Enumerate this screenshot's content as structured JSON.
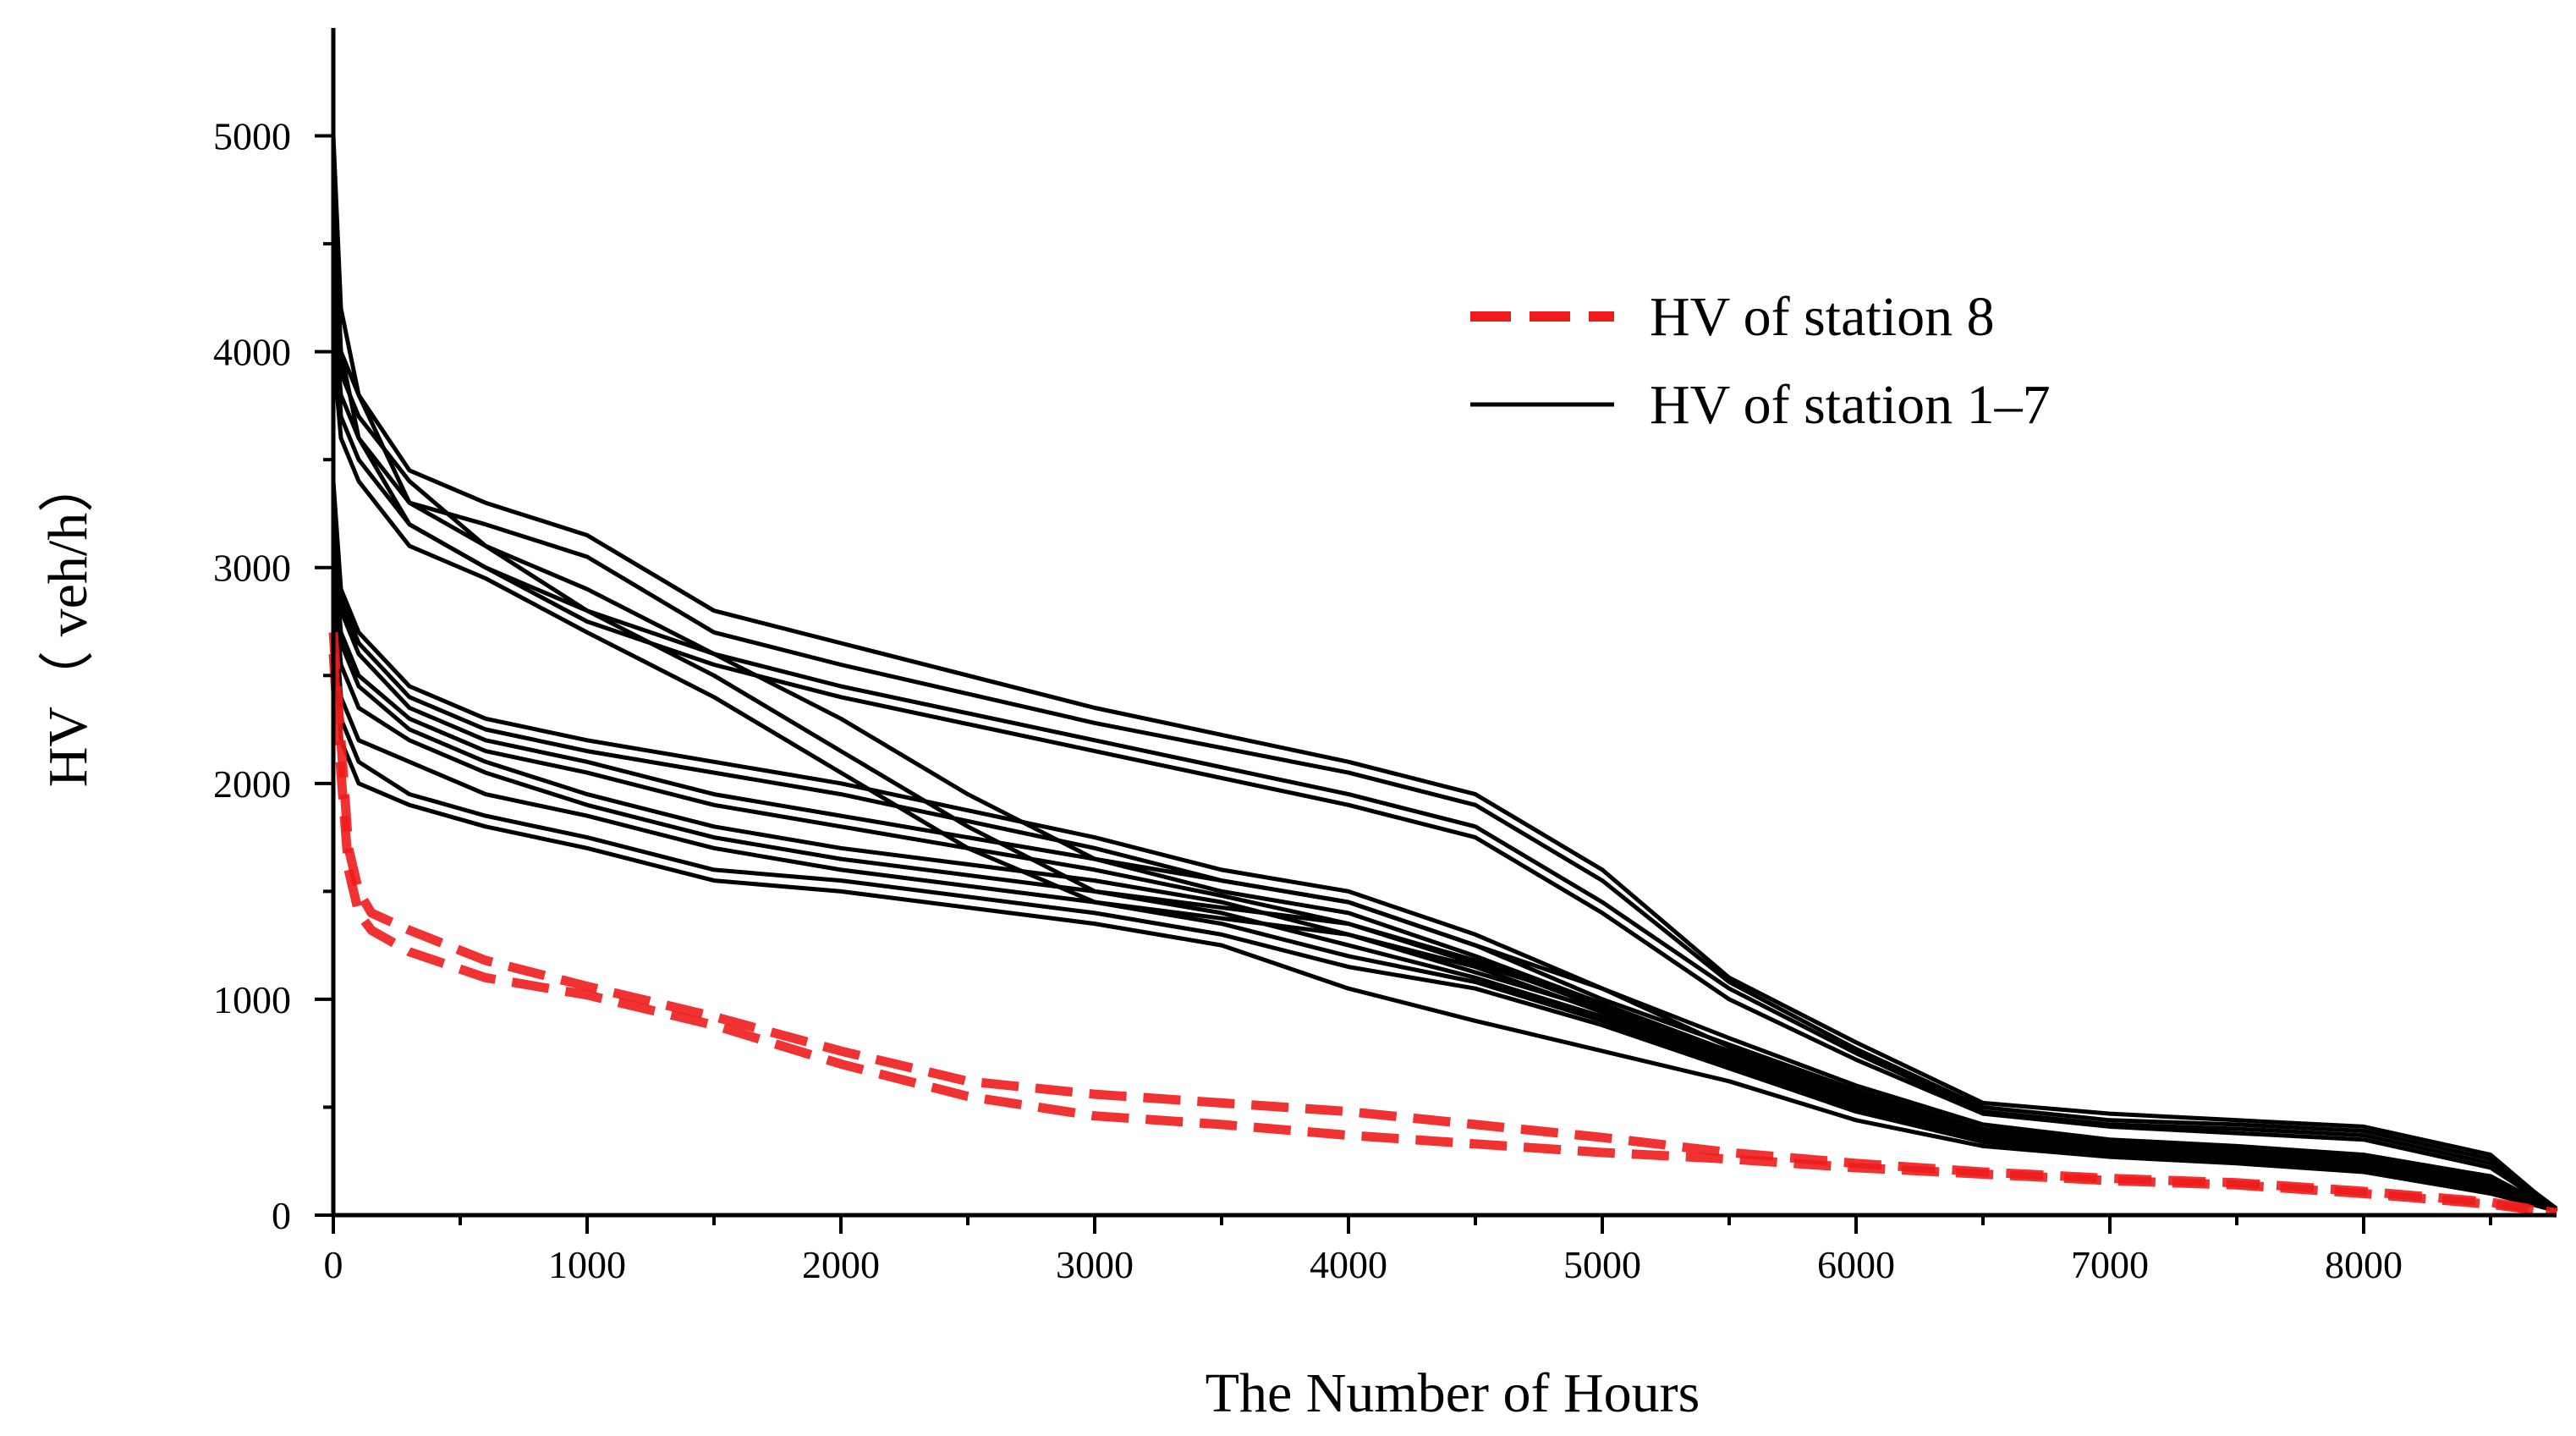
{
  "chart_data": {
    "type": "line",
    "title": "",
    "xlabel": "The Number of Hours",
    "ylabel": "HV（  veh/h）",
    "xlim": [
      0,
      8760
    ],
    "ylim": [
      0,
      5500
    ],
    "x_ticks": [
      0,
      1000,
      2000,
      3000,
      4000,
      5000,
      6000,
      7000,
      8000
    ],
    "x_tick_labels": [
      "0",
      "1000",
      "2000",
      "3000",
      "4000",
      "5000",
      "6000",
      "7000",
      "8000"
    ],
    "y_ticks": [
      0,
      1000,
      2000,
      3000,
      4000,
      5000
    ],
    "y_tick_labels": [
      "0",
      "1000",
      "2000",
      "3000",
      "4000",
      "5000"
    ],
    "legend": {
      "placement": "top-right",
      "entries": [
        {
          "label": "HV of station 8",
          "color": "#ee1c1c",
          "style": "dashed"
        },
        {
          "label": "HV of station 1–7",
          "color": "#000000",
          "style": "solid"
        }
      ]
    },
    "series": [
      {
        "name": "HV of station 1–7",
        "color": "#000000",
        "style": "solid",
        "x": [
          0,
          30,
          100,
          300,
          600,
          1000,
          1500,
          2000,
          3000,
          4000,
          4500,
          5000,
          5500,
          6000,
          6500,
          7000,
          7500,
          8000,
          8500,
          8760
        ],
        "y": [
          5000,
          4200,
          3800,
          3450,
          3300,
          3150,
          2800,
          2650,
          2350,
          2100,
          1950,
          1600,
          1100,
          800,
          520,
          470,
          440,
          410,
          280,
          20
        ]
      },
      {
        "name": "HV of station 1–7",
        "color": "#000000",
        "style": "solid",
        "x": [
          0,
          30,
          100,
          300,
          600,
          1000,
          1500,
          2000,
          3000,
          4000,
          4500,
          5000,
          5500,
          6000,
          6500,
          7000,
          7500,
          8000,
          8500,
          8760
        ],
        "y": [
          4800,
          4000,
          3600,
          3300,
          3200,
          3050,
          2700,
          2550,
          2280,
          2050,
          1900,
          1550,
          1080,
          770,
          500,
          440,
          420,
          390,
          260,
          30
        ]
      },
      {
        "name": "HV of station 1–7",
        "color": "#000000",
        "style": "solid",
        "x": [
          0,
          30,
          100,
          300,
          600,
          1000,
          1500,
          2000,
          3000,
          4000,
          4500,
          5000,
          5500,
          6000,
          6500,
          7000,
          7500,
          8000,
          8500,
          8760
        ],
        "y": [
          4500,
          3900,
          3700,
          3400,
          3100,
          2800,
          2600,
          2450,
          2200,
          1950,
          1800,
          1450,
          1050,
          750,
          480,
          420,
          400,
          370,
          240,
          20
        ]
      },
      {
        "name": "HV of station 1–7",
        "color": "#000000",
        "style": "solid",
        "x": [
          0,
          30,
          100,
          300,
          600,
          1000,
          1500,
          2000,
          3000,
          4000,
          4500,
          5000,
          5500,
          6000,
          6500,
          7000,
          7500,
          8000,
          8500,
          8760
        ],
        "y": [
          4300,
          3700,
          3500,
          3200,
          3000,
          2750,
          2550,
          2400,
          2150,
          1900,
          1750,
          1400,
          1000,
          720,
          470,
          410,
          380,
          350,
          220,
          20
        ]
      },
      {
        "name": "HV of station 1–7",
        "color": "#000000",
        "style": "solid",
        "x": [
          0,
          30,
          100,
          300,
          600,
          1000,
          1500,
          2000,
          2500,
          3000,
          4000,
          5000,
          5500,
          6000,
          6500,
          7000,
          7500,
          8000,
          8500,
          8760
        ],
        "y": [
          4600,
          4000,
          3800,
          3300,
          3100,
          2900,
          2600,
          2300,
          1950,
          1650,
          1450,
          1050,
          780,
          560,
          380,
          330,
          300,
          270,
          180,
          15
        ]
      },
      {
        "name": "HV of station 1–7",
        "color": "#000000",
        "style": "solid",
        "x": [
          0,
          30,
          100,
          300,
          600,
          1000,
          1500,
          2000,
          2500,
          3000,
          4000,
          5000,
          5500,
          6000,
          6500,
          7000,
          7500,
          8000,
          8500,
          8760
        ],
        "y": [
          4200,
          3800,
          3600,
          3200,
          3000,
          2800,
          2500,
          2150,
          1800,
          1500,
          1350,
          980,
          740,
          540,
          360,
          310,
          280,
          250,
          160,
          15
        ]
      },
      {
        "name": "HV of station 1–7",
        "color": "#000000",
        "style": "solid",
        "x": [
          0,
          30,
          100,
          300,
          600,
          1000,
          1500,
          2000,
          2500,
          3000,
          4000,
          5000,
          5500,
          6000,
          6500,
          7000,
          7500,
          8000,
          8500,
          8760
        ],
        "y": [
          4000,
          3600,
          3400,
          3100,
          2950,
          2700,
          2400,
          2050,
          1700,
          1450,
          1300,
          950,
          720,
          520,
          340,
          300,
          270,
          240,
          150,
          15
        ]
      },
      {
        "name": "HV of station 1–7",
        "color": "#000000",
        "style": "solid",
        "x": [
          0,
          30,
          100,
          300,
          600,
          1000,
          1500,
          2000,
          3000,
          3500,
          4000,
          4500,
          5000,
          5500,
          6000,
          6500,
          7000,
          7500,
          8000,
          8500,
          8760
        ],
        "y": [
          3400,
          2900,
          2700,
          2450,
          2300,
          2200,
          2100,
          2000,
          1750,
          1600,
          1500,
          1300,
          1050,
          820,
          600,
          420,
          350,
          320,
          280,
          180,
          20
        ]
      },
      {
        "name": "HV of station 1–7",
        "color": "#000000",
        "style": "solid",
        "x": [
          0,
          30,
          100,
          300,
          600,
          1000,
          1500,
          2000,
          3000,
          3500,
          4000,
          4500,
          5000,
          5500,
          6000,
          6500,
          7000,
          7500,
          8000,
          8500,
          8760
        ],
        "y": [
          3300,
          2850,
          2650,
          2400,
          2250,
          2150,
          2050,
          1950,
          1700,
          1550,
          1450,
          1250,
          1000,
          790,
          580,
          400,
          340,
          310,
          270,
          170,
          20
        ]
      },
      {
        "name": "HV of station 1–7",
        "color": "#000000",
        "style": "solid",
        "x": [
          0,
          30,
          100,
          300,
          600,
          1000,
          1500,
          2000,
          3000,
          3500,
          4000,
          4500,
          5000,
          5500,
          6000,
          6500,
          7000,
          7500,
          8000,
          8500,
          8760
        ],
        "y": [
          3200,
          2800,
          2600,
          2350,
          2200,
          2100,
          1950,
          1850,
          1650,
          1500,
          1400,
          1200,
          980,
          760,
          560,
          390,
          330,
          300,
          260,
          160,
          20
        ]
      },
      {
        "name": "HV of station 1–7",
        "color": "#000000",
        "style": "solid",
        "x": [
          0,
          30,
          100,
          300,
          600,
          1000,
          1500,
          2000,
          3000,
          3500,
          4000,
          4500,
          5000,
          5500,
          6000,
          6500,
          7000,
          7500,
          8000,
          8500,
          8760
        ],
        "y": [
          3100,
          2700,
          2500,
          2300,
          2150,
          2050,
          1900,
          1800,
          1600,
          1480,
          1350,
          1180,
          960,
          740,
          540,
          380,
          320,
          290,
          250,
          150,
          20
        ]
      },
      {
        "name": "HV of station 1–7",
        "color": "#000000",
        "style": "solid",
        "x": [
          0,
          30,
          100,
          300,
          600,
          1000,
          1500,
          2000,
          3000,
          3500,
          4000,
          4500,
          5000,
          5500,
          6000,
          6500,
          7000,
          7500,
          8000,
          8500,
          8760
        ],
        "y": [
          3000,
          2650,
          2450,
          2250,
          2100,
          1950,
          1800,
          1700,
          1550,
          1450,
          1300,
          1150,
          940,
          720,
          520,
          370,
          310,
          280,
          240,
          140,
          20
        ]
      },
      {
        "name": "HV of station 1–7",
        "color": "#000000",
        "style": "solid",
        "x": [
          0,
          30,
          100,
          300,
          600,
          1000,
          1500,
          2000,
          3000,
          3500,
          4000,
          4500,
          5000,
          5500,
          6000,
          6500,
          7000,
          7500,
          8000,
          8500,
          8760
        ],
        "y": [
          2950,
          2550,
          2350,
          2200,
          2050,
          1900,
          1750,
          1650,
          1500,
          1400,
          1250,
          1100,
          920,
          700,
          500,
          360,
          300,
          270,
          230,
          130,
          20
        ]
      },
      {
        "name": "HV of station 1–7",
        "color": "#000000",
        "style": "solid",
        "x": [
          0,
          30,
          100,
          300,
          600,
          1000,
          1500,
          2000,
          3000,
          3500,
          4000,
          4500,
          5000,
          5500,
          6000,
          6500,
          7000,
          7500,
          8000,
          8500,
          8760
        ],
        "y": [
          2900,
          2400,
          2200,
          2100,
          1950,
          1850,
          1700,
          1600,
          1450,
          1350,
          1200,
          1080,
          900,
          690,
          490,
          350,
          290,
          260,
          220,
          120,
          20
        ]
      },
      {
        "name": "HV of station 1–7",
        "color": "#000000",
        "style": "solid",
        "x": [
          0,
          30,
          100,
          300,
          600,
          1000,
          1500,
          2000,
          3000,
          3500,
          4000,
          4500,
          5000,
          5500,
          6000,
          6500,
          7000,
          7500,
          8000,
          8500,
          8760
        ],
        "y": [
          2800,
          2300,
          2100,
          1950,
          1850,
          1750,
          1600,
          1550,
          1400,
          1300,
          1150,
          1050,
          880,
          680,
          480,
          340,
          280,
          250,
          210,
          110,
          20
        ]
      },
      {
        "name": "HV of station 1–7",
        "color": "#000000",
        "style": "solid",
        "x": [
          0,
          30,
          100,
          300,
          600,
          1000,
          1500,
          2000,
          3000,
          3500,
          4000,
          4500,
          5000,
          5500,
          6000,
          6500,
          7000,
          7500,
          8000,
          8500,
          8760
        ],
        "y": [
          2700,
          2200,
          2000,
          1900,
          1800,
          1700,
          1550,
          1500,
          1350,
          1250,
          1050,
          900,
          760,
          620,
          440,
          320,
          270,
          240,
          200,
          100,
          20
        ]
      },
      {
        "name": "HV of station 8",
        "color": "#ee1c1c",
        "style": "dashed",
        "x": [
          0,
          30,
          60,
          100,
          150,
          300,
          600,
          1000,
          1500,
          2000,
          2500,
          3000,
          3500,
          4000,
          4500,
          5000,
          5500,
          6000,
          6500,
          7000,
          7500,
          8000,
          8500,
          8760
        ],
        "y": [
          2700,
          2200,
          1700,
          1500,
          1400,
          1320,
          1180,
          1060,
          920,
          760,
          620,
          560,
          520,
          480,
          420,
          360,
          290,
          240,
          200,
          170,
          150,
          110,
          60,
          10
        ]
      },
      {
        "name": "HV of station 8",
        "color": "#ee1c1c",
        "style": "dashed",
        "x": [
          0,
          30,
          60,
          100,
          150,
          300,
          600,
          1000,
          1500,
          2000,
          2500,
          3000,
          3500,
          4000,
          4500,
          5000,
          5500,
          6000,
          6500,
          7000,
          7500,
          8000,
          8500,
          8760
        ],
        "y": [
          2600,
          2050,
          1600,
          1400,
          1320,
          1220,
          1100,
          1020,
          880,
          700,
          550,
          460,
          420,
          370,
          330,
          290,
          260,
          220,
          190,
          160,
          140,
          100,
          50,
          10
        ]
      }
    ]
  }
}
